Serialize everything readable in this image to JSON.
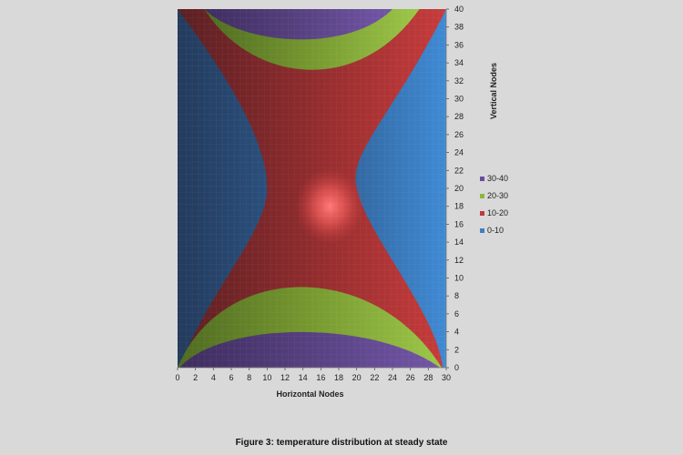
{
  "caption": "Figure 3: temperature distribution at steady state",
  "chart_data": {
    "type": "heatmap",
    "title": "",
    "xlabel": "Horizontal Nodes",
    "ylabel": "Vertical Nodes",
    "xlim": [
      0,
      30
    ],
    "ylim": [
      0,
      40
    ],
    "x_ticks": [
      "0",
      "2",
      "4",
      "6",
      "8",
      "10",
      "12",
      "14",
      "16",
      "18",
      "20",
      "22",
      "24",
      "26",
      "28",
      "30"
    ],
    "y_ticks": [
      "0",
      "2",
      "4",
      "6",
      "8",
      "10",
      "12",
      "14",
      "16",
      "18",
      "20",
      "22",
      "24",
      "26",
      "28",
      "30",
      "32",
      "34",
      "36",
      "38",
      "40"
    ],
    "legend": [
      {
        "label": "30-40",
        "color": "#6a4c9c"
      },
      {
        "label": "20-30",
        "color": "#8db63c"
      },
      {
        "label": "10-20",
        "color": "#c0393b"
      },
      {
        "label": "0-10",
        "color": "#3d7fc4"
      }
    ],
    "bands": [
      {
        "range": "30-40",
        "edge": "top",
        "x_extent": [
          3,
          24
        ],
        "depth": 3
      },
      {
        "range": "20-30",
        "edge": "top",
        "x_extent": [
          3,
          27
        ],
        "depth": 8
      },
      {
        "range": "30-40",
        "edge": "bottom",
        "x_extent": [
          0,
          29
        ],
        "depth": 4
      },
      {
        "range": "20-30",
        "edge": "bottom",
        "x_extent": [
          0,
          29
        ],
        "depth": 9
      },
      {
        "range": "10-20",
        "region": "central hourglass",
        "waist_x": [
          10,
          20
        ],
        "waist_y": 20,
        "hotspot": [
          17,
          18
        ]
      }
    ],
    "legend_position": "right",
    "grid": false
  }
}
